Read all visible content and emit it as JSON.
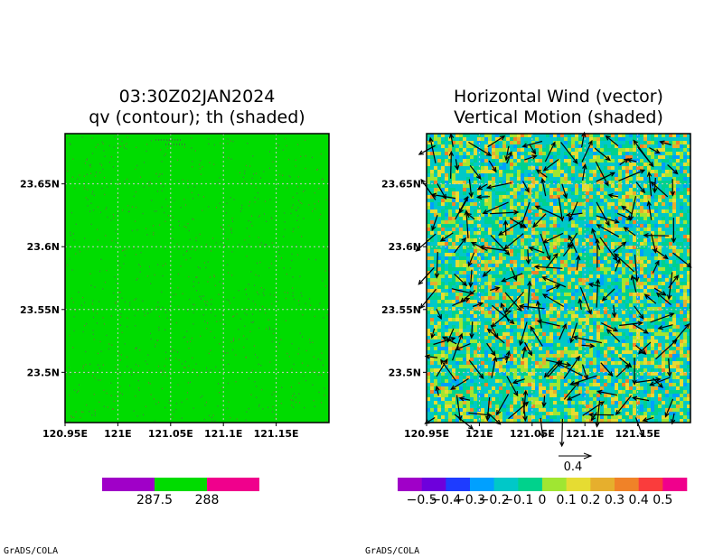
{
  "credit": "GrADS/COLA",
  "colors": {
    "purple": "#a000c8",
    "green": "#00dc00",
    "magenta": "#f0008c",
    "grid": "#bdbdbd"
  },
  "chart_data": [
    {
      "type": "heatmap",
      "title": "03:30Z02JAN2024",
      "subtitle": "qv (contour); th (shaded)",
      "xlabel": "",
      "ylabel": "",
      "xlim": [
        120.95,
        121.2
      ],
      "ylim": [
        23.46,
        23.69
      ],
      "xticks": [
        "120.95E",
        "121E",
        "121.05E",
        "121.1E",
        "121.15E"
      ],
      "xtick_values": [
        120.95,
        121.0,
        121.05,
        121.1,
        121.15
      ],
      "yticks": [
        "23.5N",
        "23.55N",
        "23.6N",
        "23.65N"
      ],
      "ytick_values": [
        23.5,
        23.55,
        23.6,
        23.65
      ],
      "grid": true,
      "field_value": "287.5-288",
      "colorbar": {
        "labels": [
          "287.5",
          "288"
        ],
        "colors": [
          "#a000c8",
          "#00dc00",
          "#f0008c"
        ]
      }
    },
    {
      "type": "heatmap",
      "title": "Horizontal Wind (vector)",
      "subtitle": "Vertical Motion (shaded)",
      "xlabel": "",
      "ylabel": "",
      "xlim": [
        120.95,
        121.2
      ],
      "ylim": [
        23.46,
        23.69
      ],
      "xticks": [
        "120.95E",
        "121E",
        "121.05E",
        "121.1E",
        "121.15E"
      ],
      "xtick_values": [
        120.95,
        121.0,
        121.05,
        121.1,
        121.15
      ],
      "yticks": [
        "23.5N",
        "23.55N",
        "23.6N",
        "23.65N"
      ],
      "ytick_values": [
        23.5,
        23.55,
        23.6,
        23.65
      ],
      "grid": true,
      "vector_reference": "0.4",
      "colorbar": {
        "labels": [
          "−0.5",
          "−0.4",
          "−0.3",
          "−0.2",
          "−0.1",
          "0",
          "0.1",
          "0.2",
          "0.3",
          "0.4",
          "0.5"
        ],
        "colors": [
          "#a000c8",
          "#6e00dc",
          "#1e3cff",
          "#00a0ff",
          "#00c8c8",
          "#00d28c",
          "#a0e632",
          "#e6dc32",
          "#e6af2d",
          "#f08228",
          "#fa3c3c",
          "#f0008c"
        ]
      }
    }
  ]
}
